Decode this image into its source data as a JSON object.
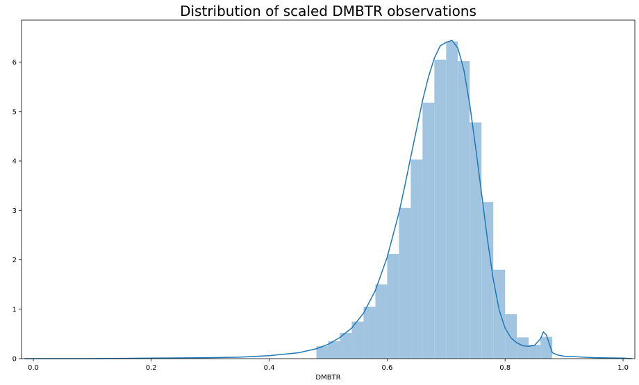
{
  "chart_data": {
    "type": "bar",
    "title": "Distribution of scaled DMBTR observations",
    "xlabel": "DMBTR",
    "ylabel": "",
    "xlim": [
      -0.02,
      1.02
    ],
    "ylim": [
      0,
      6.85
    ],
    "grid": false,
    "legend": "none",
    "x_ticks": [
      0.0,
      0.2,
      0.4,
      0.6,
      0.8,
      1.0
    ],
    "x_tick_labels": [
      "0.0",
      "0.2",
      "0.4",
      "0.6",
      "0.8",
      "1.0"
    ],
    "y_ticks": [
      0,
      1,
      2,
      3,
      4,
      5,
      6
    ],
    "y_tick_labels": [
      "0",
      "1",
      "2",
      "3",
      "4",
      "5",
      "6"
    ],
    "histogram": {
      "bin_edges": [
        0.48,
        0.5,
        0.52,
        0.54,
        0.56,
        0.58,
        0.6,
        0.62,
        0.64,
        0.66,
        0.68,
        0.7,
        0.72,
        0.74,
        0.76,
        0.78,
        0.8,
        0.82,
        0.84,
        0.86,
        0.88
      ],
      "values": [
        0.25,
        0.35,
        0.52,
        0.75,
        1.05,
        1.5,
        2.12,
        3.05,
        4.03,
        5.18,
        6.05,
        6.42,
        6.02,
        4.78,
        3.17,
        1.8,
        0.9,
        0.43,
        0.28,
        0.44
      ],
      "color": "#a1c5e0"
    },
    "kde": {
      "x": [
        -0.015,
        0.0,
        0.1,
        0.2,
        0.3,
        0.35,
        0.4,
        0.45,
        0.48,
        0.5,
        0.52,
        0.54,
        0.56,
        0.58,
        0.6,
        0.62,
        0.63,
        0.64,
        0.65,
        0.66,
        0.67,
        0.68,
        0.69,
        0.7,
        0.71,
        0.72,
        0.73,
        0.74,
        0.75,
        0.76,
        0.77,
        0.78,
        0.79,
        0.8,
        0.81,
        0.82,
        0.83,
        0.84,
        0.85,
        0.86,
        0.865,
        0.87,
        0.875,
        0.88,
        0.89,
        0.9,
        0.95,
        1.0,
        1.015
      ],
      "y": [
        0.0,
        0.0,
        0.0,
        0.01,
        0.02,
        0.03,
        0.06,
        0.12,
        0.2,
        0.29,
        0.43,
        0.62,
        0.92,
        1.38,
        2.05,
        2.95,
        3.5,
        4.08,
        4.65,
        5.22,
        5.7,
        6.08,
        6.33,
        6.4,
        6.44,
        6.28,
        5.85,
        5.15,
        4.28,
        3.35,
        2.42,
        1.6,
        0.98,
        0.62,
        0.42,
        0.32,
        0.26,
        0.25,
        0.27,
        0.4,
        0.54,
        0.48,
        0.3,
        0.12,
        0.07,
        0.05,
        0.02,
        0.01,
        0.0
      ],
      "color": "#1f77b4"
    }
  }
}
